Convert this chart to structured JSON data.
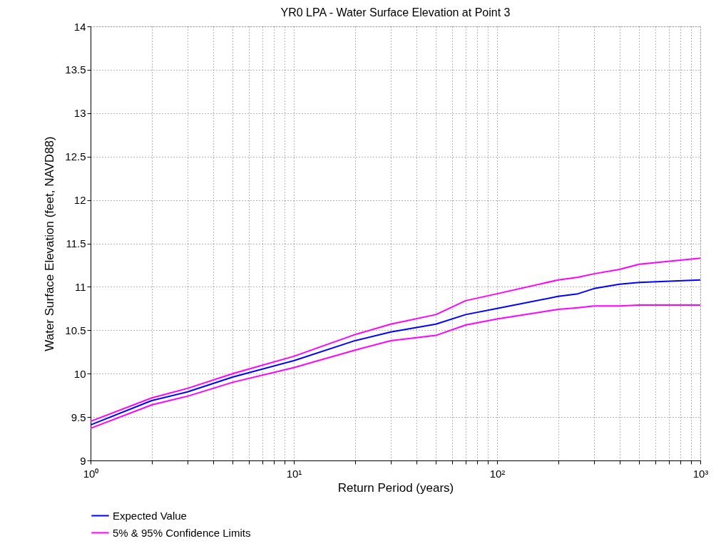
{
  "chart_data": {
    "type": "line",
    "title": "YR0 LPA - Water Surface Elevation at Point 3",
    "xlabel": "Return Period (years)",
    "ylabel": "Water Surface Elevation (feet, NAVD88)",
    "log": "x",
    "xlim": [
      1,
      1000
    ],
    "ylim": [
      9,
      14
    ],
    "xticks": [
      {
        "value": 1,
        "label": "10⁰"
      },
      {
        "value": 2,
        "label": null
      },
      {
        "value": 3,
        "label": null
      },
      {
        "value": 4,
        "label": null
      },
      {
        "value": 5,
        "label": null
      },
      {
        "value": 6,
        "label": null
      },
      {
        "value": 7,
        "label": null
      },
      {
        "value": 8,
        "label": null
      },
      {
        "value": 9,
        "label": null
      },
      {
        "value": 10,
        "label": "10¹"
      },
      {
        "value": 20,
        "label": null
      },
      {
        "value": 30,
        "label": null
      },
      {
        "value": 40,
        "label": null
      },
      {
        "value": 50,
        "label": null
      },
      {
        "value": 60,
        "label": null
      },
      {
        "value": 70,
        "label": null
      },
      {
        "value": 80,
        "label": null
      },
      {
        "value": 90,
        "label": null
      },
      {
        "value": 100,
        "label": "10²"
      },
      {
        "value": 200,
        "label": null
      },
      {
        "value": 300,
        "label": null
      },
      {
        "value": 400,
        "label": null
      },
      {
        "value": 500,
        "label": null
      },
      {
        "value": 600,
        "label": null
      },
      {
        "value": 700,
        "label": null
      },
      {
        "value": 800,
        "label": null
      },
      {
        "value": 900,
        "label": null
      },
      {
        "value": 1000,
        "label": "10³"
      }
    ],
    "yticks": [
      9,
      9.5,
      10,
      10.5,
      11,
      11.5,
      12,
      12.5,
      13,
      13.5,
      14
    ],
    "grid": true,
    "legend": "bottom",
    "line_style": "solid",
    "marker": "none",
    "x": [
      1,
      2,
      3,
      5,
      10,
      20,
      30,
      50,
      70,
      100,
      200,
      250,
      300,
      400,
      500,
      1000
    ],
    "series": [
      {
        "name": "Expected Value",
        "color": "#0000ff",
        "values": [
          9.41,
          9.69,
          9.79,
          9.96,
          10.15,
          10.38,
          10.48,
          10.57,
          10.68,
          10.75,
          10.89,
          10.92,
          10.98,
          11.03,
          11.05,
          11.08
        ]
      },
      {
        "name": "5% & 95% Confidence Limits",
        "color": "#ff00ff",
        "values": [
          9.45,
          9.72,
          9.83,
          10.0,
          10.2,
          10.45,
          10.57,
          10.68,
          10.84,
          10.92,
          11.08,
          11.11,
          11.15,
          11.2,
          11.26,
          11.33
        ]
      },
      {
        "color": "#ff00ff",
        "values": [
          9.37,
          9.64,
          9.74,
          9.9,
          10.07,
          10.27,
          10.38,
          10.44,
          10.56,
          10.63,
          10.74,
          10.76,
          10.78,
          10.78,
          10.79,
          10.79
        ]
      }
    ]
  }
}
